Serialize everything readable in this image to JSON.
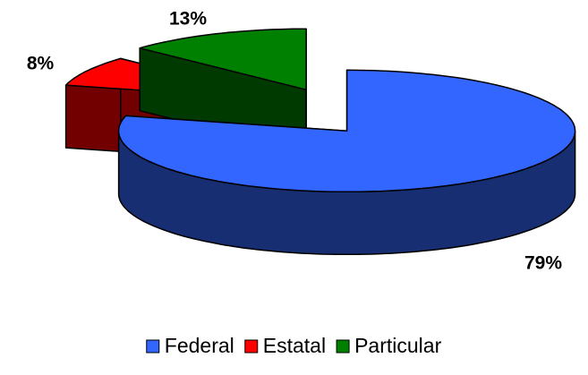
{
  "chart_data": {
    "type": "pie",
    "categories": [
      "Federal",
      "Estatal",
      "Particular"
    ],
    "values": [
      79,
      8,
      13
    ],
    "value_labels": [
      "79%",
      "8%",
      "13%"
    ],
    "colors": [
      "#3366ff",
      "#ff0000",
      "#008000"
    ],
    "legend": "bottom"
  }
}
